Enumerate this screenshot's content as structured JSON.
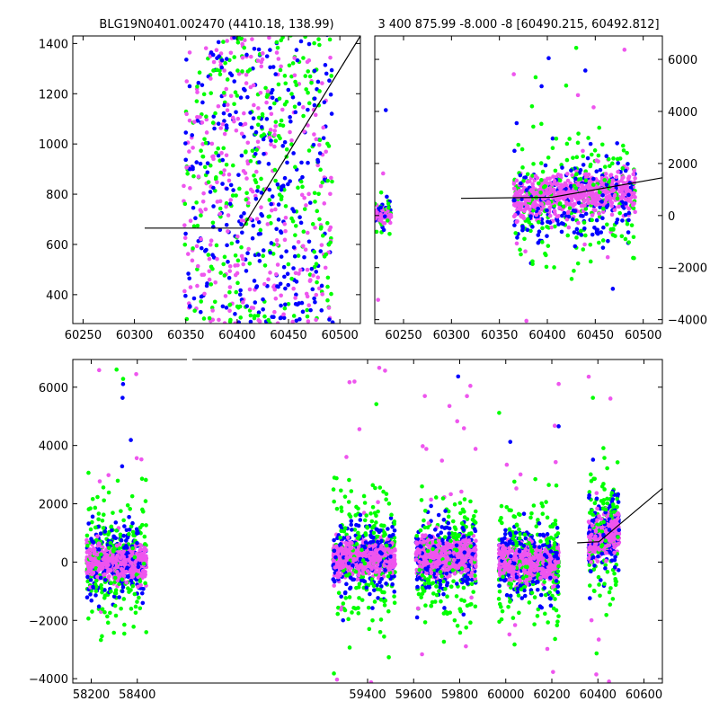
{
  "chart_data": [
    {
      "type": "scatter",
      "title": "BLG19N0401.002470 (4410.18, 138.99)",
      "xlim": [
        60240,
        60520
      ],
      "ylim": [
        285,
        1430
      ],
      "xticks": [
        60250,
        60300,
        60350,
        60400,
        60450,
        60500
      ],
      "yticks": [
        400,
        600,
        800,
        1000,
        1200,
        1400
      ],
      "cloud": {
        "x_range": [
          60348,
          60493
        ],
        "y_range": [
          285,
          1430
        ]
      },
      "model_line": [
        [
          60310,
          665
        ],
        [
          60405,
          665
        ],
        [
          60520,
          1430
        ]
      ]
    },
    {
      "type": "scatter",
      "title": "3 400 875.99 -8.000 -8 [60490.215, 60492.812]",
      "xlim": [
        60220,
        60520
      ],
      "ylim": [
        -4150,
        6900
      ],
      "xticks": [
        60250,
        60300,
        60350,
        60400,
        60450,
        60500
      ],
      "yticks": [
        -4000,
        -2000,
        0,
        2000,
        4000,
        6000
      ],
      "yaxis_side": "right",
      "clusters": [
        {
          "x_range": [
            60220,
            60238
          ],
          "y_center": 0,
          "y_spread": 400
        },
        {
          "x_range": [
            60365,
            60492
          ],
          "y_center": 600,
          "y_spread": 900
        }
      ],
      "model_line": [
        [
          60310,
          660
        ],
        [
          60405,
          700
        ],
        [
          60520,
          1450
        ]
      ]
    },
    {
      "type": "scatter",
      "xlim": [
        58120,
        60680
      ],
      "ylim": [
        -4150,
        6950
      ],
      "xticks": [
        58200,
        58400,
        59400,
        59600,
        59800,
        60000,
        60200,
        60400,
        60600
      ],
      "yticks": [
        -4000,
        -2000,
        0,
        2000,
        4000,
        6000
      ],
      "axis_break_gap": [
        58450,
        59200
      ],
      "seasons": [
        {
          "x_range": [
            58180,
            58440
          ],
          "y_center": 0
        },
        {
          "x_range": [
            59250,
            59520
          ],
          "y_center": 150
        },
        {
          "x_range": [
            59610,
            59870
          ],
          "y_center": 200
        },
        {
          "x_range": [
            59970,
            60230
          ],
          "y_center": 0
        },
        {
          "x_range": [
            60360,
            60492
          ],
          "y_center": 600
        }
      ],
      "model_line": [
        [
          60310,
          660
        ],
        [
          60405,
          700
        ],
        [
          60680,
          2530
        ]
      ]
    }
  ],
  "series_colors": [
    "#00ff00",
    "#0000ff",
    "#ee55ee"
  ],
  "model_color": "#000000"
}
